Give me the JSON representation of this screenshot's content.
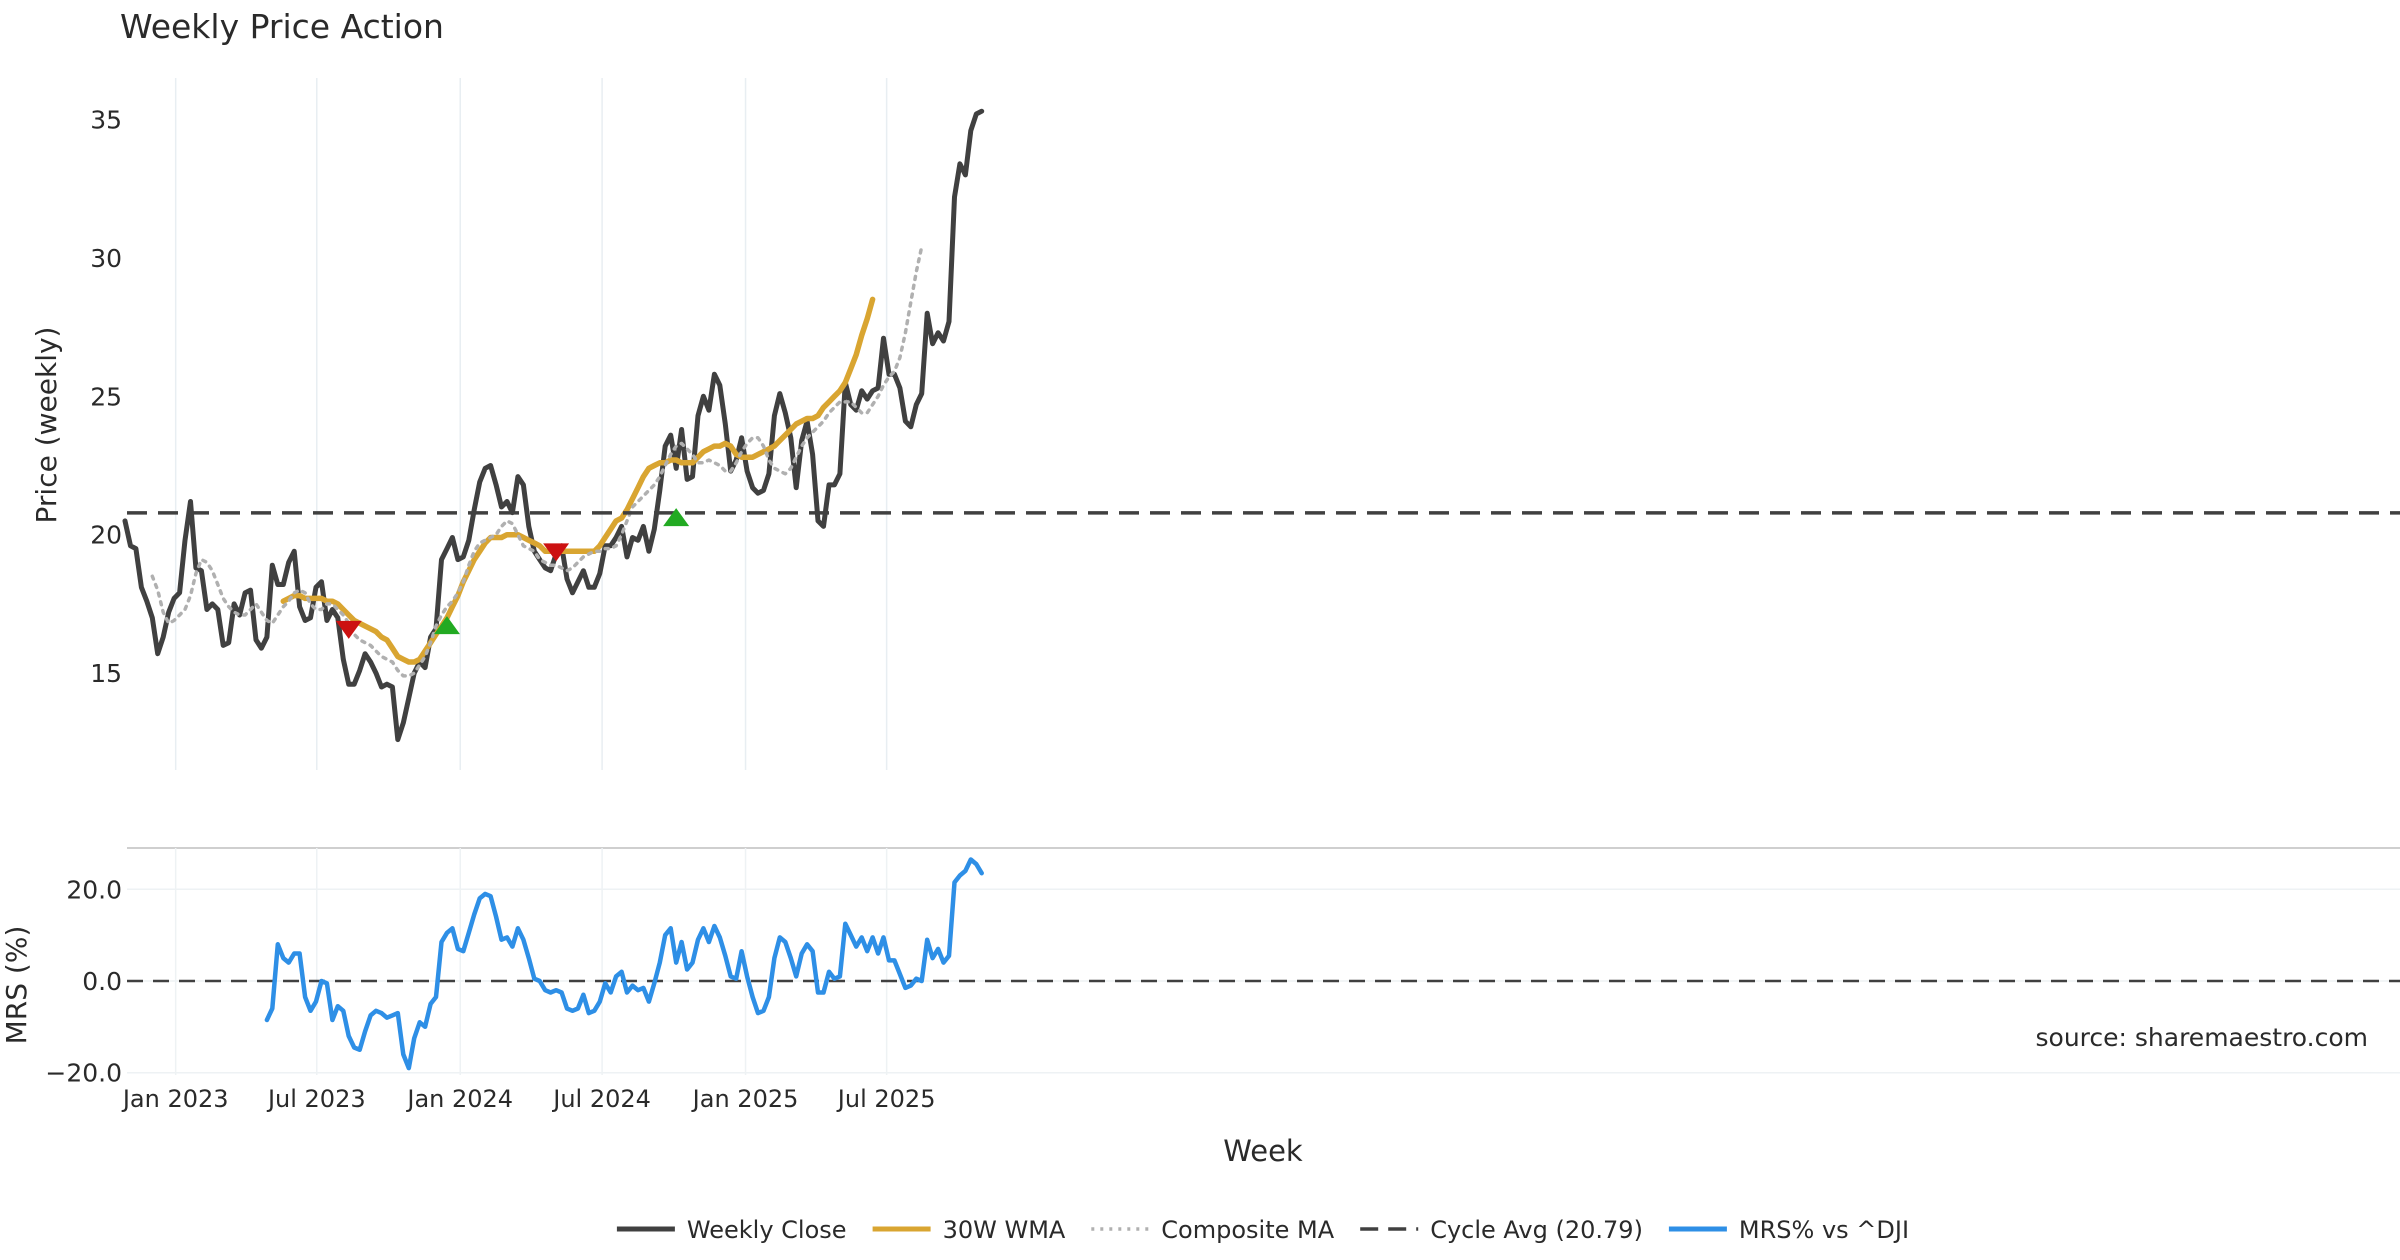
{
  "chart_data": [
    {
      "type": "line",
      "title": "Weekly Price Action",
      "ylabel": "Price (weekly)",
      "xlabel": "Week",
      "ylim": [
        11.5,
        36.5
      ],
      "y_ticks": [
        15,
        20,
        25,
        30,
        35
      ],
      "x_start": "2022-10-28",
      "x_ticks": [
        {
          "label": "Jan 2023",
          "date": "2023-01-01"
        },
        {
          "label": "Jul 2023",
          "date": "2023-07-01"
        },
        {
          "label": "Jan 2024",
          "date": "2024-01-01"
        },
        {
          "label": "Jul 2024",
          "date": "2024-07-01"
        },
        {
          "label": "Jan 2025",
          "date": "2025-01-01"
        },
        {
          "label": "Jul 2025",
          "date": "2025-07-01"
        }
      ],
      "grid": true,
      "series": [
        {
          "name": "Weekly Close",
          "color": "#404040",
          "start_week": 0,
          "values": [
            20.5,
            19.6,
            19.5,
            18.1,
            17.6,
            17.0,
            15.7,
            16.3,
            17.2,
            17.7,
            17.9,
            19.8,
            21.2,
            18.8,
            18.7,
            17.3,
            17.5,
            17.3,
            16.0,
            16.1,
            17.5,
            17.1,
            17.9,
            18.0,
            16.2,
            15.9,
            16.3,
            18.9,
            18.2,
            18.2,
            19.0,
            19.4,
            17.4,
            16.9,
            17.0,
            18.1,
            18.3,
            16.9,
            17.3,
            17.0,
            15.5,
            14.6,
            14.6,
            15.1,
            15.7,
            15.4,
            15.0,
            14.5,
            14.6,
            14.5,
            12.6,
            13.2,
            14.1,
            15.0,
            15.4,
            15.2,
            16.3,
            16.6,
            19.1,
            19.5,
            19.9,
            19.1,
            19.2,
            19.8,
            20.9,
            21.9,
            22.4,
            22.5,
            21.8,
            21.0,
            21.2,
            20.8,
            22.1,
            21.8,
            20.3,
            19.4,
            19.1,
            18.8,
            18.7,
            19.3,
            19.6,
            18.4,
            17.9,
            18.3,
            18.7,
            18.1,
            18.1,
            18.6,
            19.6,
            19.6,
            19.9,
            20.3,
            19.2,
            19.9,
            19.8,
            20.3,
            19.4,
            20.2,
            21.6,
            23.2,
            23.6,
            22.4,
            23.8,
            22.0,
            22.1,
            24.3,
            25.0,
            24.5,
            25.8,
            25.4,
            24.0,
            22.3,
            22.7,
            23.5,
            22.3,
            21.7,
            21.5,
            21.6,
            22.2,
            24.3,
            25.1,
            24.4,
            23.5,
            21.7,
            23.4,
            24.1,
            22.9,
            20.5,
            20.3,
            21.8,
            21.8,
            22.2,
            25.5,
            24.7,
            24.5,
            25.2,
            24.9,
            25.2,
            25.3,
            27.1,
            25.8,
            25.8,
            25.3,
            24.1,
            23.9,
            24.7,
            25.1,
            28.0,
            26.9,
            27.3,
            27.0,
            27.7,
            32.2,
            33.4,
            33.0,
            34.6,
            35.2,
            35.3
          ]
        },
        {
          "name": "30W WMA",
          "color": "#d9a531",
          "start_week": 29,
          "values": [
            17.6,
            17.7,
            17.8,
            17.8,
            17.7,
            17.7,
            17.7,
            17.7,
            17.6,
            17.6,
            17.5,
            17.3,
            17.1,
            16.9,
            16.8,
            16.7,
            16.6,
            16.5,
            16.3,
            16.2,
            15.9,
            15.6,
            15.5,
            15.4,
            15.4,
            15.5,
            15.8,
            16.1,
            16.4,
            16.7,
            17.0,
            17.4,
            17.8,
            18.3,
            18.7,
            19.1,
            19.4,
            19.7,
            19.9,
            19.9,
            19.9,
            20.0,
            20.0,
            20.0,
            19.9,
            19.8,
            19.7,
            19.6,
            19.4,
            19.4,
            19.4,
            19.4,
            19.4,
            19.4,
            19.4,
            19.4,
            19.4,
            19.4,
            19.6,
            19.9,
            20.2,
            20.5,
            20.6,
            20.9,
            21.3,
            21.7,
            22.1,
            22.4,
            22.5,
            22.6,
            22.6,
            22.7,
            22.7,
            22.6,
            22.6,
            22.6,
            22.8,
            23.0,
            23.1,
            23.2,
            23.2,
            23.3,
            23.2,
            22.9,
            22.8,
            22.8,
            22.8,
            22.9,
            23.0,
            23.1,
            23.2,
            23.4,
            23.6,
            23.8,
            24.0,
            24.1,
            24.2,
            24.2,
            24.3,
            24.6,
            24.8,
            25.0,
            25.2,
            25.5,
            26.0,
            26.5,
            27.2,
            27.8,
            28.5
          ]
        },
        {
          "name": "Composite MA",
          "color": "#b0b0b0",
          "start_week": 5,
          "values": [
            18.5,
            18.0,
            17.2,
            16.8,
            16.9,
            17.1,
            17.3,
            17.8,
            18.6,
            19.1,
            19.0,
            18.7,
            18.2,
            17.7,
            17.4,
            17.2,
            17.1,
            17.1,
            17.3,
            17.5,
            17.2,
            16.9,
            16.8,
            17.1,
            17.4,
            17.6,
            17.9,
            18.0,
            17.9,
            17.5,
            17.3,
            17.3,
            17.5,
            17.5,
            17.3,
            17.1,
            16.8,
            16.4,
            16.2,
            16.1,
            16.0,
            15.8,
            15.6,
            15.5,
            15.4,
            15.1,
            14.9,
            14.9,
            15.0,
            15.3,
            15.6,
            16.1,
            16.7,
            17.1,
            17.4,
            17.6,
            17.9,
            18.3,
            18.9,
            19.4,
            19.7,
            19.8,
            19.9,
            20.0,
            20.3,
            20.5,
            20.4,
            20.0,
            19.6,
            19.5,
            19.4,
            19.1,
            19.0,
            18.9,
            18.9,
            18.8,
            18.7,
            18.8,
            19.0,
            19.2,
            19.3,
            19.4,
            19.4,
            19.5,
            19.5,
            19.6,
            20.0,
            20.5,
            21.0,
            21.2,
            21.4,
            21.6,
            21.8,
            22.1,
            22.5,
            22.9,
            23.2,
            23.3,
            23.1,
            22.9,
            22.6,
            22.6,
            22.7,
            22.6,
            22.5,
            22.3,
            22.3,
            22.6,
            23.0,
            23.3,
            23.5,
            23.5,
            23.2,
            22.7,
            22.4,
            22.3,
            22.2,
            22.4,
            22.8,
            23.2,
            23.5,
            23.7,
            23.9,
            24.1,
            24.4,
            24.6,
            24.8,
            24.8,
            24.8,
            24.6,
            24.4,
            24.4,
            24.7,
            25.0,
            25.4,
            25.7,
            25.9,
            26.4,
            27.3,
            28.4,
            29.5,
            30.4
          ]
        },
        {
          "name": "Cycle Avg (20.79)",
          "color": "#404040",
          "constant": 20.79
        }
      ],
      "markers": [
        {
          "type": "sell",
          "week": 41,
          "value": 16.6,
          "color": "#cc1111"
        },
        {
          "type": "buy",
          "week": 59,
          "value": 16.7,
          "color": "#22aa22"
        },
        {
          "type": "sell",
          "week": 79,
          "value": 19.4,
          "color": "#cc1111"
        },
        {
          "type": "buy",
          "week": 101,
          "value": 20.6,
          "color": "#22aa22"
        }
      ]
    },
    {
      "type": "line",
      "ylabel": "MRS (%)",
      "ylim": [
        -20.5,
        29
      ],
      "y_ticks": [
        {
          "value": 20,
          "label": "20.0"
        },
        {
          "value": 0,
          "label": "0.0"
        },
        {
          "value": -20,
          "label": "−20.0"
        }
      ],
      "reference_line": 0,
      "series": [
        {
          "name": "MRS% vs ^DJI",
          "color": "#2e8fe6",
          "start_week": 26,
          "values": [
            -8.5,
            -6.0,
            8.0,
            5.0,
            4.0,
            6.0,
            6.0,
            -3.5,
            -6.5,
            -4.5,
            0.0,
            -0.5,
            -8.5,
            -5.5,
            -6.5,
            -12.0,
            -14.5,
            -15.0,
            -11.0,
            -7.5,
            -6.5,
            -7.0,
            -8.0,
            -7.5,
            -7.0,
            -16.0,
            -19.0,
            -12.5,
            -9.0,
            -10.0,
            -5.0,
            -3.5,
            8.5,
            10.5,
            11.5,
            7.0,
            6.5,
            10.5,
            14.5,
            18.0,
            19.0,
            18.5,
            14.0,
            9.0,
            9.5,
            7.5,
            11.5,
            9.0,
            5.0,
            0.5,
            0.0,
            -2.0,
            -2.5,
            -2.0,
            -2.5,
            -6.0,
            -6.5,
            -6.0,
            -3.0,
            -7.0,
            -6.5,
            -4.5,
            -0.5,
            -2.5,
            1.0,
            2.0,
            -2.5,
            -1.0,
            -2.0,
            -1.5,
            -4.5,
            -0.5,
            4.0,
            10.0,
            11.5,
            4.0,
            8.5,
            2.5,
            4.0,
            9.0,
            11.5,
            8.5,
            12.0,
            9.5,
            5.5,
            1.0,
            0.5,
            6.5,
            1.0,
            -3.5,
            -7.0,
            -6.5,
            -3.5,
            5.0,
            9.5,
            8.5,
            5.0,
            1.0,
            6.0,
            8.0,
            6.5,
            -2.5,
            -2.5,
            2.0,
            0.5,
            1.0,
            12.5,
            10.0,
            7.5,
            9.5,
            6.5,
            9.5,
            6.0,
            9.5,
            4.5,
            4.5,
            1.5,
            -1.5,
            -1.0,
            0.5,
            0.0,
            9.0,
            5.0,
            7.0,
            4.0,
            5.5,
            21.5,
            23.0,
            24.0,
            26.5,
            25.5,
            23.5
          ]
        }
      ]
    }
  ],
  "x_axis_label": "Week",
  "source": "source: sharemaestro.com",
  "legend": [
    {
      "label": "Weekly Close",
      "color": "#404040",
      "style": "solid"
    },
    {
      "label": "30W WMA",
      "color": "#d9a531",
      "style": "solid"
    },
    {
      "label": "Composite MA",
      "color": "#b0b0b0",
      "style": "dotted"
    },
    {
      "label": "Cycle Avg (20.79)",
      "color": "#404040",
      "style": "dashed"
    },
    {
      "label": "MRS% vs ^DJI",
      "color": "#2e8fe6",
      "style": "solid"
    }
  ]
}
